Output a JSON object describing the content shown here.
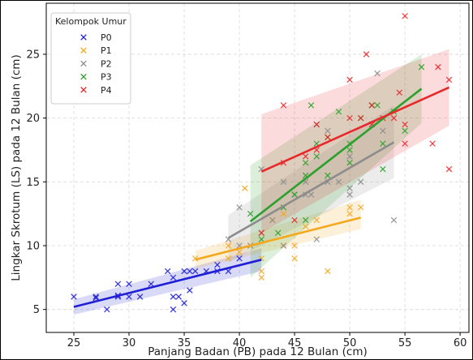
{
  "chart_data": {
    "type": "scatter",
    "title": "",
    "xlabel": "Panjang Badan (PB) pada 12 Bulan (cm)",
    "ylabel": "Lingkar Skrotum (LS) pada 12 Bulan (cm)",
    "xlim": [
      22.5,
      60.8
    ],
    "ylim": [
      3.2,
      29.0
    ],
    "xticks": [
      25,
      30,
      35,
      40,
      45,
      50,
      55,
      60
    ],
    "yticks": [
      5,
      10,
      15,
      20,
      25
    ],
    "grid": true,
    "legend": {
      "title": "Kelompok Umur",
      "placement": "top-left"
    },
    "marker": "x",
    "series": [
      {
        "name": "P0",
        "color": "#1f1fd6",
        "points": [
          [
            25,
            6
          ],
          [
            27,
            6
          ],
          [
            27,
            5.9
          ],
          [
            28,
            5
          ],
          [
            29,
            6
          ],
          [
            29,
            7
          ],
          [
            29,
            6.1
          ],
          [
            30,
            6
          ],
          [
            30,
            7
          ],
          [
            31,
            6
          ],
          [
            32,
            7
          ],
          [
            33.5,
            8
          ],
          [
            34,
            7.5
          ],
          [
            34,
            5
          ],
          [
            34,
            6
          ],
          [
            34.5,
            6
          ],
          [
            35,
            8
          ],
          [
            35,
            5.5
          ],
          [
            35.5,
            6.5
          ],
          [
            35.5,
            8
          ],
          [
            36,
            8
          ],
          [
            37,
            8
          ],
          [
            38,
            8
          ],
          [
            38,
            8.5
          ],
          [
            39,
            8
          ],
          [
            40,
            9
          ]
        ],
        "trend": {
          "x": [
            25,
            42
          ],
          "y": [
            5.2,
            8.9
          ]
        },
        "band": {
          "x": [
            25,
            42
          ],
          "lower": [
            4.6,
            8.0
          ],
          "upper": [
            5.8,
            9.8
          ]
        }
      },
      {
        "name": "P1",
        "color": "#f5a81c",
        "points": [
          [
            36,
            9
          ],
          [
            39,
            10
          ],
          [
            39,
            9
          ],
          [
            40,
            9.5
          ],
          [
            40.5,
            14.5
          ],
          [
            41,
            10
          ],
          [
            42,
            9
          ],
          [
            42,
            8
          ],
          [
            42,
            7.5
          ],
          [
            43,
            12
          ],
          [
            44,
            12.5
          ],
          [
            44,
            10
          ],
          [
            45,
            9
          ],
          [
            45,
            10
          ],
          [
            46,
            11.5
          ],
          [
            47,
            12
          ],
          [
            48,
            8
          ],
          [
            50,
            12.5
          ],
          [
            50,
            13
          ],
          [
            51,
            13
          ]
        ],
        "trend": {
          "x": [
            36,
            51
          ],
          "y": [
            8.9,
            12.2
          ]
        },
        "band": {
          "x": [
            36,
            51
          ],
          "lower": [
            8.2,
            11.3
          ],
          "upper": [
            9.6,
            13.6
          ]
        }
      },
      {
        "name": "P2",
        "color": "#8c8c8c",
        "points": [
          [
            39,
            10.5
          ],
          [
            40,
            10
          ],
          [
            40,
            13
          ],
          [
            41,
            10
          ],
          [
            42,
            11
          ],
          [
            42,
            16
          ],
          [
            43,
            12
          ],
          [
            44,
            15
          ],
          [
            44,
            10
          ],
          [
            45,
            14
          ],
          [
            46,
            14
          ],
          [
            46,
            15
          ],
          [
            46.5,
            14
          ],
          [
            47,
            10.5
          ],
          [
            47,
            19.5
          ],
          [
            48,
            19
          ],
          [
            48,
            15
          ],
          [
            49,
            15
          ],
          [
            50,
            14
          ],
          [
            50,
            17
          ],
          [
            50,
            14.5
          ],
          [
            51,
            15
          ],
          [
            52,
            21
          ],
          [
            52.5,
            23.5
          ],
          [
            53,
            19
          ],
          [
            54,
            12
          ]
        ],
        "trend": {
          "x": [
            39,
            54
          ],
          "y": [
            10.6,
            18.1
          ]
        },
        "band": {
          "x": [
            39,
            54
          ],
          "lower": [
            8.7,
            15.3
          ],
          "upper": [
            12.4,
            21.0
          ]
        }
      },
      {
        "name": "P3",
        "color": "#2ca02c",
        "points": [
          [
            41,
            12.5
          ],
          [
            42,
            10.5
          ],
          [
            43.5,
            11
          ],
          [
            44,
            13
          ],
          [
            45,
            14
          ],
          [
            46,
            12
          ],
          [
            46,
            15.5
          ],
          [
            46,
            16.5
          ],
          [
            46.5,
            21
          ],
          [
            47,
            17
          ],
          [
            47,
            18
          ],
          [
            48,
            15.5
          ],
          [
            48,
            18.5
          ],
          [
            49,
            20.5
          ],
          [
            50,
            17.5
          ],
          [
            50,
            16.5
          ],
          [
            50,
            18
          ],
          [
            51,
            20
          ],
          [
            52,
            21
          ],
          [
            52.5,
            21
          ],
          [
            53,
            18
          ],
          [
            53,
            16
          ],
          [
            54,
            20.5
          ],
          [
            55,
            19
          ],
          [
            56.5,
            24
          ]
        ],
        "trend": {
          "x": [
            41,
            56.5
          ],
          "y": [
            11.9,
            22.3
          ]
        },
        "band": {
          "x": [
            41,
            56.5
          ],
          "lower": [
            7.5,
            19.6
          ],
          "upper": [
            16.3,
            25.0
          ]
        }
      },
      {
        "name": "P4",
        "color": "#e8282b",
        "points": [
          [
            42,
            11
          ],
          [
            44,
            16.5
          ],
          [
            44,
            21
          ],
          [
            45,
            12
          ],
          [
            46,
            17
          ],
          [
            47,
            19.5
          ],
          [
            47,
            17.5
          ],
          [
            48,
            18.5
          ],
          [
            50,
            23
          ],
          [
            50,
            20
          ],
          [
            51,
            20
          ],
          [
            51.5,
            25
          ],
          [
            52,
            21
          ],
          [
            52,
            19.5
          ],
          [
            53,
            20
          ],
          [
            54,
            20
          ],
          [
            54.5,
            22
          ],
          [
            55,
            28
          ],
          [
            55,
            19.5
          ],
          [
            55,
            18
          ],
          [
            57.5,
            18
          ],
          [
            58,
            24
          ],
          [
            59,
            23
          ],
          [
            59,
            16
          ]
        ],
        "trend": {
          "x": [
            42,
            59
          ],
          "y": [
            15.8,
            22.4
          ]
        },
        "band": {
          "x": [
            42,
            59
          ],
          "lower": [
            11.0,
            19.4
          ],
          "upper": [
            20.3,
            25.4
          ]
        }
      }
    ]
  }
}
